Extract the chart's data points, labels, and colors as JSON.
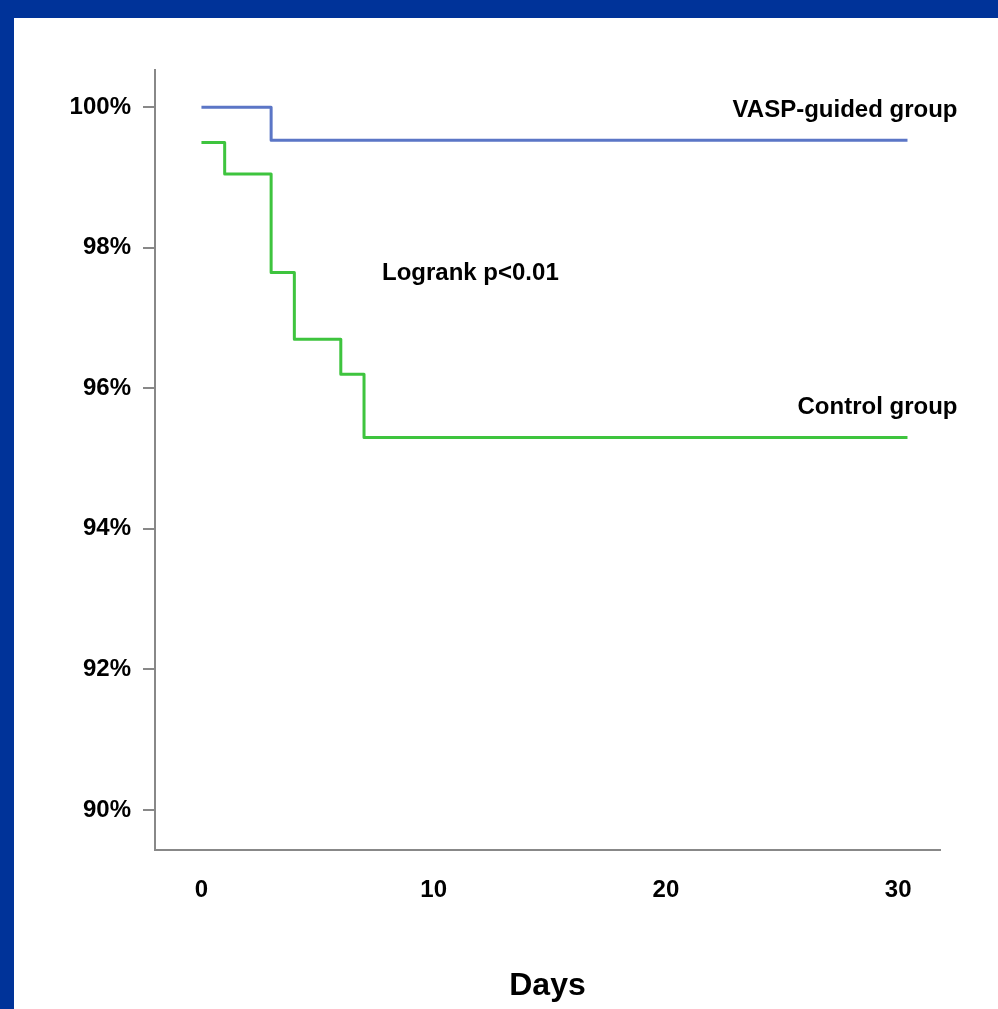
{
  "chart_data": {
    "type": "step",
    "xlabel": "Days",
    "annotations": [
      "Logrank p<0.01"
    ],
    "xlim": [
      -2,
      31.8
    ],
    "xticks": [
      0,
      10,
      20,
      30
    ],
    "ylim": [
      89.43,
      100.53
    ],
    "yticks": [
      {
        "value": 90,
        "label": "90%"
      },
      {
        "value": 92,
        "label": "92%"
      },
      {
        "value": 94,
        "label": "94%"
      },
      {
        "value": 96,
        "label": "96%"
      },
      {
        "value": 98,
        "label": "98%"
      },
      {
        "value": 100,
        "label": "100%"
      }
    ],
    "grid": false,
    "legend": false,
    "marker": "none",
    "line_style": "solid",
    "series": [
      {
        "name": "VASP-guided group",
        "color": "#5b76c6",
        "x": [
          0,
          3,
          30.4
        ],
        "values": [
          100,
          99.53,
          99.53
        ]
      },
      {
        "name": "Control group",
        "color": "#3ec43e",
        "x": [
          0,
          1,
          3,
          4,
          6,
          7,
          30.4
        ],
        "values": [
          99.5,
          99.05,
          97.65,
          96.7,
          96.2,
          95.3,
          95.3
        ]
      }
    ]
  }
}
